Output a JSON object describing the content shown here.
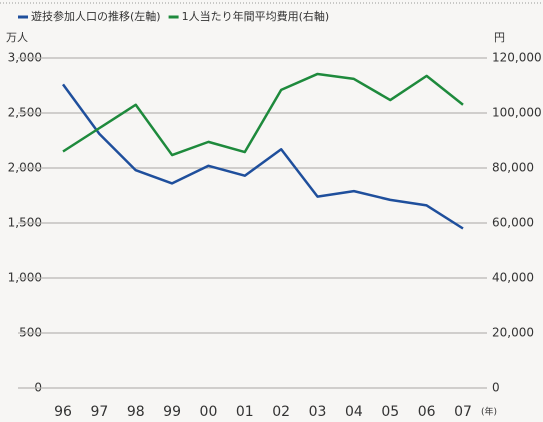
{
  "chart_data": {
    "type": "line",
    "y_unit": "万人",
    "y2_unit": "円",
    "x_unit": "(年)",
    "categories": [
      "96",
      "97",
      "98",
      "99",
      "00",
      "01",
      "02",
      "03",
      "04",
      "05",
      "06",
      "07"
    ],
    "series": [
      {
        "name": "遊技参加人口の推移(左軸)",
        "color": "#1f4f9c",
        "values": [
          2760,
          2310,
          1980,
          1860,
          2020,
          1930,
          2170,
          1740,
          1790,
          1710,
          1660,
          1450
        ]
      },
      {
        "name": "1人当たり年間平均費用(右軸)",
        "color": "#1e8a3c",
        "axis": "y2",
        "values": [
          86000,
          94500,
          103000,
          84700,
          89500,
          85800,
          108400,
          114200,
          112400,
          104700,
          113500,
          103000
        ]
      }
    ],
    "ylim": [
      0,
      3000
    ],
    "yticks": [
      0,
      500,
      {
        "value": 1000,
        "label": "1,000"
      },
      {
        "value": 1500,
        "label": "1,500"
      },
      {
        "value": 2000,
        "label": "2,000"
      },
      {
        "value": 2500,
        "label": "2,500"
      },
      {
        "value": 3000,
        "label": "3,000"
      }
    ],
    "y2lim": [
      0,
      120000
    ],
    "y2ticks": [
      0,
      {
        "value": 20000,
        "label": "20,000"
      },
      {
        "value": 40000,
        "label": "40,000"
      },
      {
        "value": 60000,
        "label": "60,000"
      },
      {
        "value": 80000,
        "label": "80,000"
      },
      {
        "value": 100000,
        "label": "100,000"
      },
      {
        "value": 120000,
        "label": "120,000"
      }
    ],
    "grid": true
  }
}
